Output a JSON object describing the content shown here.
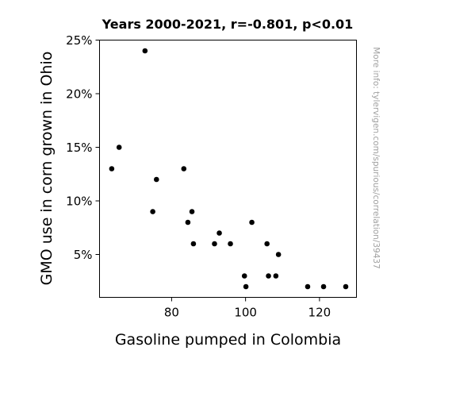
{
  "chart_data": {
    "type": "scatter",
    "title": "Years 2000-2021, r=-0.801, p<0.01",
    "xlabel": "Gasoline pumped in Colombia",
    "ylabel": "GMO use in corn grown in Ohio",
    "xlim": [
      60.5,
      130
    ],
    "ylim": [
      1,
      25
    ],
    "xticks": [
      80,
      100,
      120
    ],
    "xtick_labels": [
      "80",
      "100",
      "120"
    ],
    "yticks": [
      5,
      10,
      15,
      20,
      25
    ],
    "ytick_labels": [
      "5%",
      "10%",
      "15%",
      "20%",
      "25%"
    ],
    "grid": false,
    "point_color": "#000000",
    "points": [
      {
        "x": 63.8,
        "y": 13
      },
      {
        "x": 65.8,
        "y": 15
      },
      {
        "x": 72.8,
        "y": 24
      },
      {
        "x": 74.9,
        "y": 9
      },
      {
        "x": 75.9,
        "y": 12
      },
      {
        "x": 83.3,
        "y": 13
      },
      {
        "x": 84.4,
        "y": 8
      },
      {
        "x": 85.5,
        "y": 9
      },
      {
        "x": 85.9,
        "y": 6
      },
      {
        "x": 91.6,
        "y": 6
      },
      {
        "x": 92.9,
        "y": 7
      },
      {
        "x": 95.9,
        "y": 6
      },
      {
        "x": 99.7,
        "y": 3
      },
      {
        "x": 100.1,
        "y": 2
      },
      {
        "x": 101.7,
        "y": 8
      },
      {
        "x": 105.8,
        "y": 6
      },
      {
        "x": 106.2,
        "y": 3
      },
      {
        "x": 108.2,
        "y": 3
      },
      {
        "x": 108.9,
        "y": 5
      },
      {
        "x": 116.8,
        "y": 2
      },
      {
        "x": 121.1,
        "y": 2
      },
      {
        "x": 127.1,
        "y": 2
      }
    ]
  },
  "watermark": "More info: tylervigen.com/spurious/correlation/39437"
}
